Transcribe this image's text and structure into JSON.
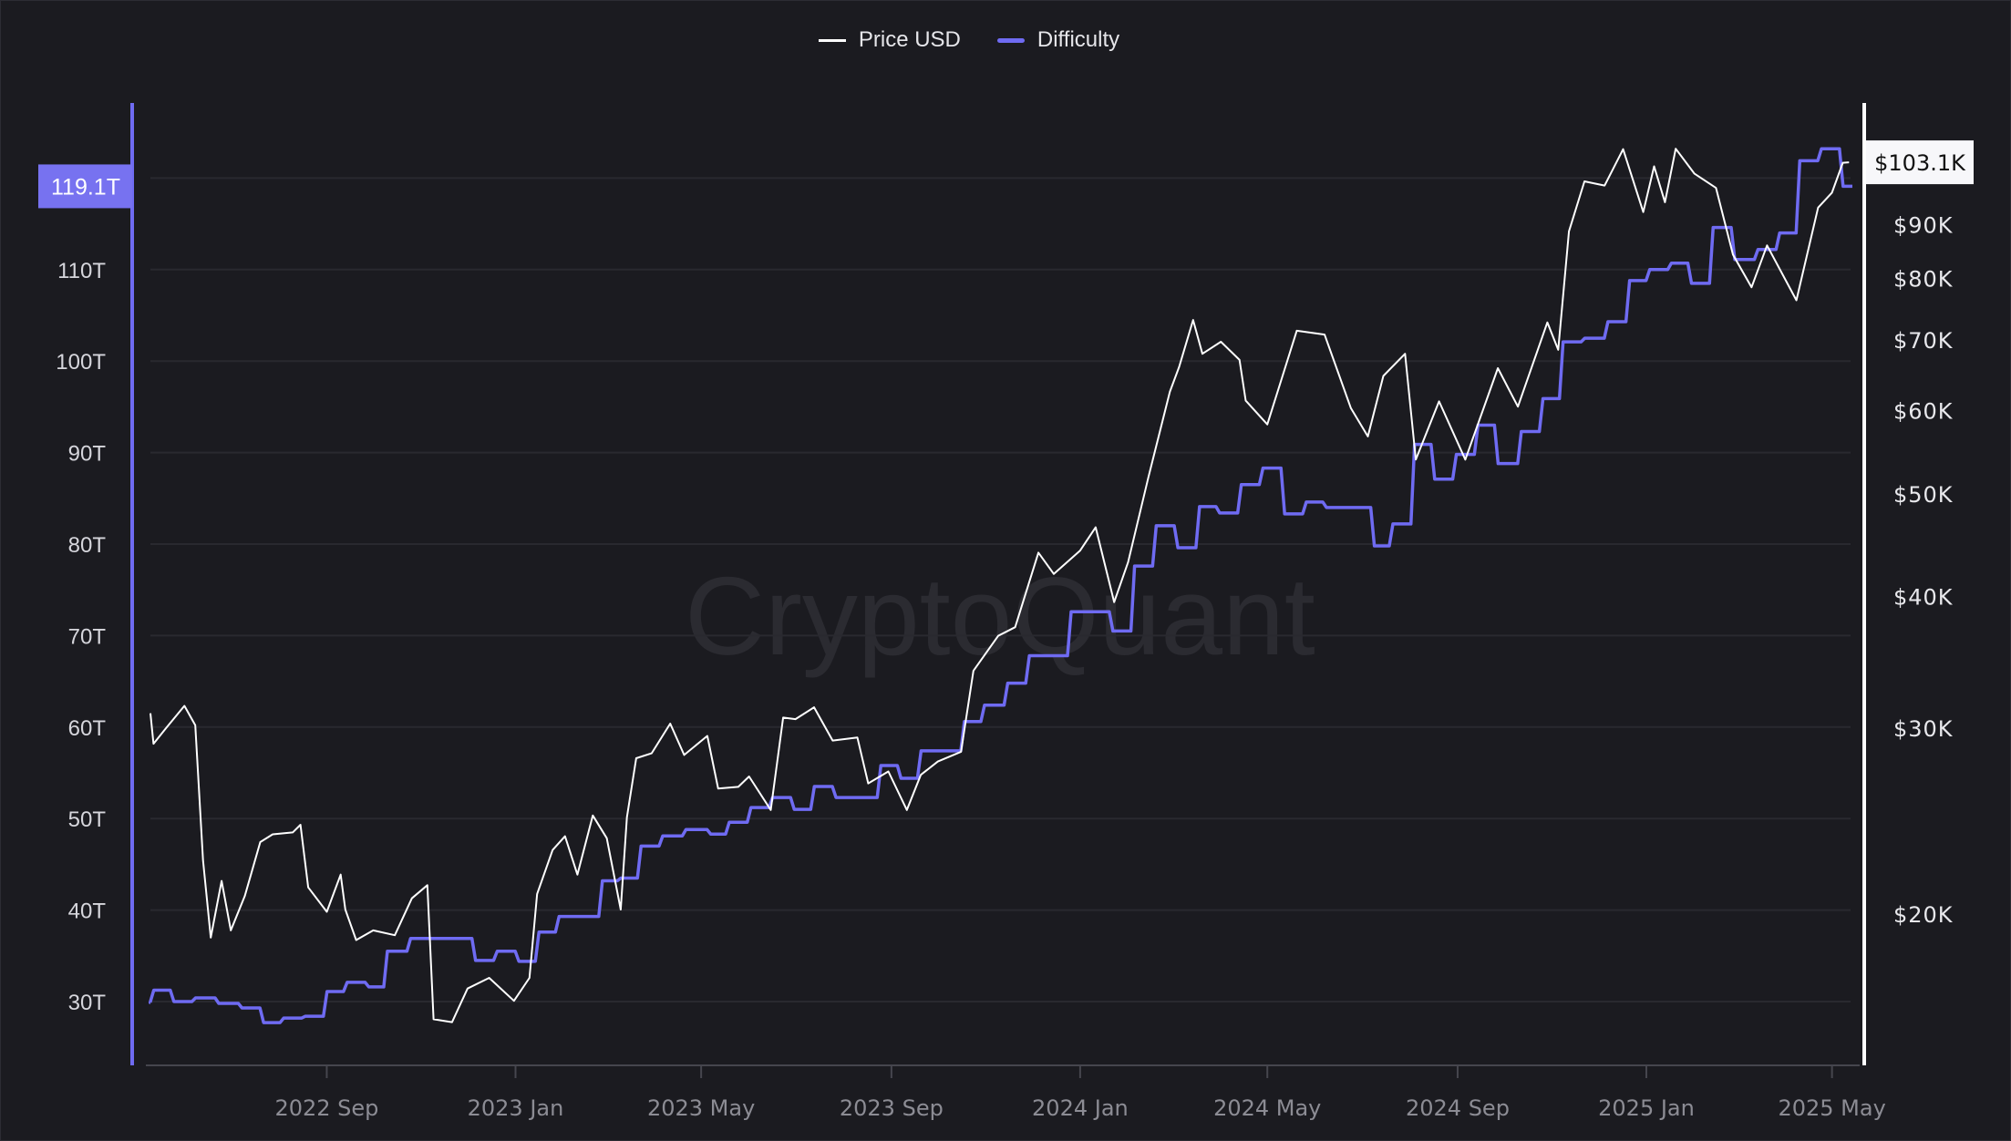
{
  "chart_data": {
    "type": "line",
    "watermark": "CryptoQuant",
    "legend": {
      "placement": "top-center",
      "entries": [
        "Price USD",
        "Difficulty"
      ]
    },
    "colors": {
      "background": "#1b1b20",
      "price": "#ffffff",
      "difficulty": "#6f6bf2",
      "grid": "#29292f",
      "difficulty_label_bg": "#7772f0"
    },
    "grid": true,
    "x_axis": {
      "type": "date",
      "range": [
        "2022-05-10",
        "2025-05-13"
      ],
      "ticks": [
        {
          "date": "2022-09-01",
          "label": "2022 Sep"
        },
        {
          "date": "2023-01-01",
          "label": "2023 Jan"
        },
        {
          "date": "2023-05-01",
          "label": "2023 May"
        },
        {
          "date": "2023-09-01",
          "label": "2023 Sep"
        },
        {
          "date": "2024-01-01",
          "label": "2024 Jan"
        },
        {
          "date": "2024-05-01",
          "label": "2024 May"
        },
        {
          "date": "2024-09-01",
          "label": "2024 Sep"
        },
        {
          "date": "2025-01-01",
          "label": "2025 Jan"
        },
        {
          "date": "2025-05-01",
          "label": "2025 May"
        }
      ]
    },
    "y_left": {
      "unit": "T",
      "scale": "linear",
      "range": [
        25,
        125
      ],
      "ticks": [
        {
          "v": 30,
          "label": "30T"
        },
        {
          "v": 40,
          "label": "40T"
        },
        {
          "v": 50,
          "label": "50T"
        },
        {
          "v": 60,
          "label": "60T"
        },
        {
          "v": 70,
          "label": "70T"
        },
        {
          "v": 80,
          "label": "80T"
        },
        {
          "v": 90,
          "label": "90T"
        },
        {
          "v": 100,
          "label": "100T"
        },
        {
          "v": 110,
          "label": "110T"
        }
      ],
      "current_label": "119.1T",
      "current_value": 119.1
    },
    "y_right": {
      "unit": "USD",
      "scale": "log",
      "ticks": [
        {
          "v": 20000,
          "label": "$20K"
        },
        {
          "v": 30000,
          "label": "$30K"
        },
        {
          "v": 40000,
          "label": "$40K"
        },
        {
          "v": 50000,
          "label": "$50K"
        },
        {
          "v": 60000,
          "label": "$60K"
        },
        {
          "v": 70000,
          "label": "$70K"
        },
        {
          "v": 80000,
          "label": "$80K"
        },
        {
          "v": 90000,
          "label": "$90K"
        }
      ],
      "current_label": "$103.1K",
      "current_value": 103100
    },
    "series": [
      {
        "name": "Price USD",
        "axis": "right",
        "points": [
          [
            "2022-05-10",
            31000
          ],
          [
            "2022-05-12",
            29000
          ],
          [
            "2022-05-20",
            30000
          ],
          [
            "2022-06-01",
            31500
          ],
          [
            "2022-06-08",
            30200
          ],
          [
            "2022-06-13",
            22500
          ],
          [
            "2022-06-18",
            19000
          ],
          [
            "2022-06-25",
            21500
          ],
          [
            "2022-07-01",
            19300
          ],
          [
            "2022-07-10",
            20800
          ],
          [
            "2022-07-20",
            23400
          ],
          [
            "2022-07-28",
            23800
          ],
          [
            "2022-08-10",
            23900
          ],
          [
            "2022-08-15",
            24300
          ],
          [
            "2022-08-20",
            21200
          ],
          [
            "2022-09-01",
            20100
          ],
          [
            "2022-09-10",
            21800
          ],
          [
            "2022-09-13",
            20200
          ],
          [
            "2022-09-20",
            18900
          ],
          [
            "2022-10-01",
            19300
          ],
          [
            "2022-10-15",
            19100
          ],
          [
            "2022-10-26",
            20700
          ],
          [
            "2022-11-05",
            21300
          ],
          [
            "2022-11-09",
            15900
          ],
          [
            "2022-11-21",
            15800
          ],
          [
            "2022-12-01",
            17000
          ],
          [
            "2022-12-15",
            17400
          ],
          [
            "2022-12-31",
            16550
          ],
          [
            "2023-01-10",
            17400
          ],
          [
            "2023-01-15",
            20900
          ],
          [
            "2023-01-25",
            23000
          ],
          [
            "2023-02-02",
            23700
          ],
          [
            "2023-02-10",
            21800
          ],
          [
            "2023-02-20",
            24800
          ],
          [
            "2023-03-01",
            23600
          ],
          [
            "2023-03-10",
            20200
          ],
          [
            "2023-03-14",
            24700
          ],
          [
            "2023-03-20",
            28100
          ],
          [
            "2023-03-30",
            28400
          ],
          [
            "2023-04-11",
            30300
          ],
          [
            "2023-04-20",
            28300
          ],
          [
            "2023-05-05",
            29500
          ],
          [
            "2023-05-12",
            26300
          ],
          [
            "2023-05-25",
            26400
          ],
          [
            "2023-06-01",
            27000
          ],
          [
            "2023-06-15",
            25100
          ],
          [
            "2023-06-23",
            30700
          ],
          [
            "2023-07-01",
            30600
          ],
          [
            "2023-07-13",
            31400
          ],
          [
            "2023-07-25",
            29200
          ],
          [
            "2023-08-10",
            29400
          ],
          [
            "2023-08-17",
            26600
          ],
          [
            "2023-08-30",
            27300
          ],
          [
            "2023-09-11",
            25100
          ],
          [
            "2023-09-20",
            27100
          ],
          [
            "2023-10-01",
            27900
          ],
          [
            "2023-10-16",
            28500
          ],
          [
            "2023-10-24",
            34000
          ],
          [
            "2023-11-09",
            36700
          ],
          [
            "2023-11-20",
            37400
          ],
          [
            "2023-12-05",
            44000
          ],
          [
            "2023-12-15",
            42000
          ],
          [
            "2024-01-01",
            44200
          ],
          [
            "2024-01-11",
            46500
          ],
          [
            "2024-01-23",
            39500
          ],
          [
            "2024-02-01",
            43100
          ],
          [
            "2024-02-14",
            51800
          ],
          [
            "2024-02-28",
            62500
          ],
          [
            "2024-03-05",
            66000
          ],
          [
            "2024-03-14",
            73100
          ],
          [
            "2024-03-20",
            67900
          ],
          [
            "2024-04-01",
            69700
          ],
          [
            "2024-04-13",
            67000
          ],
          [
            "2024-04-17",
            61300
          ],
          [
            "2024-05-01",
            58200
          ],
          [
            "2024-05-20",
            71400
          ],
          [
            "2024-06-07",
            70800
          ],
          [
            "2024-06-24",
            60300
          ],
          [
            "2024-07-05",
            56700
          ],
          [
            "2024-07-15",
            64700
          ],
          [
            "2024-07-29",
            67900
          ],
          [
            "2024-08-05",
            53900
          ],
          [
            "2024-08-20",
            61200
          ],
          [
            "2024-09-06",
            53900
          ],
          [
            "2024-09-27",
            65800
          ],
          [
            "2024-10-10",
            60500
          ],
          [
            "2024-10-29",
            72700
          ],
          [
            "2024-11-05",
            68500
          ],
          [
            "2024-11-12",
            88700
          ],
          [
            "2024-11-22",
            98900
          ],
          [
            "2024-12-05",
            98000
          ],
          [
            "2024-12-17",
            106100
          ],
          [
            "2024-12-30",
            92500
          ],
          [
            "2025-01-06",
            102200
          ],
          [
            "2025-01-13",
            94500
          ],
          [
            "2025-01-20",
            106200
          ],
          [
            "2025-02-01",
            100600
          ],
          [
            "2025-02-15",
            97500
          ],
          [
            "2025-02-26",
            84300
          ],
          [
            "2025-03-10",
            78500
          ],
          [
            "2025-03-20",
            86000
          ],
          [
            "2025-04-08",
            76300
          ],
          [
            "2025-04-22",
            93400
          ],
          [
            "2025-05-01",
            96500
          ],
          [
            "2025-05-08",
            103000
          ],
          [
            "2025-05-12",
            103100
          ]
        ]
      },
      {
        "name": "Difficulty",
        "axis": "left",
        "step": true,
        "points": [
          [
            "2022-05-10",
            29.9
          ],
          [
            "2022-05-11",
            31.25
          ],
          [
            "2022-05-24",
            30.0
          ],
          [
            "2022-06-07",
            30.4
          ],
          [
            "2022-06-22",
            29.8
          ],
          [
            "2022-07-07",
            29.3
          ],
          [
            "2022-07-21",
            27.7
          ],
          [
            "2022-08-03",
            28.2
          ],
          [
            "2022-08-17",
            28.4
          ],
          [
            "2022-08-31",
            31.1
          ],
          [
            "2022-09-13",
            32.1
          ],
          [
            "2022-09-27",
            31.6
          ],
          [
            "2022-10-09",
            35.5
          ],
          [
            "2022-10-24",
            36.9
          ],
          [
            "2022-12-05",
            34.5
          ],
          [
            "2022-12-19",
            35.5
          ],
          [
            "2023-01-02",
            34.4
          ],
          [
            "2023-01-15",
            37.6
          ],
          [
            "2023-01-28",
            39.3
          ],
          [
            "2023-02-25",
            43.2
          ],
          [
            "2023-03-09",
            43.5
          ],
          [
            "2023-03-22",
            47.0
          ],
          [
            "2023-04-05",
            48.1
          ],
          [
            "2023-04-20",
            48.8
          ],
          [
            "2023-05-06",
            48.3
          ],
          [
            "2023-05-18",
            49.6
          ],
          [
            "2023-06-01",
            51.2
          ],
          [
            "2023-06-15",
            52.3
          ],
          [
            "2023-06-29",
            51.0
          ],
          [
            "2023-07-12",
            53.5
          ],
          [
            "2023-07-26",
            52.3
          ],
          [
            "2023-08-24",
            55.8
          ],
          [
            "2023-09-06",
            54.4
          ],
          [
            "2023-09-19",
            57.4
          ],
          [
            "2023-10-17",
            60.6
          ],
          [
            "2023-10-30",
            62.4
          ],
          [
            "2023-11-14",
            64.8
          ],
          [
            "2023-11-28",
            67.8
          ],
          [
            "2023-12-25",
            72.6
          ],
          [
            "2024-01-21",
            70.5
          ],
          [
            "2024-02-04",
            77.6
          ],
          [
            "2024-02-18",
            82.0
          ],
          [
            "2024-03-03",
            79.6
          ],
          [
            "2024-03-17",
            84.1
          ],
          [
            "2024-03-30",
            83.4
          ],
          [
            "2024-04-13",
            86.5
          ],
          [
            "2024-04-27",
            88.3
          ],
          [
            "2024-05-11",
            83.3
          ],
          [
            "2024-05-25",
            84.6
          ],
          [
            "2024-06-07",
            84.0
          ],
          [
            "2024-07-08",
            79.8
          ],
          [
            "2024-07-20",
            82.2
          ],
          [
            "2024-08-03",
            90.9
          ],
          [
            "2024-08-16",
            87.1
          ],
          [
            "2024-08-30",
            89.8
          ],
          [
            "2024-09-13",
            93.0
          ],
          [
            "2024-09-26",
            88.8
          ],
          [
            "2024-10-11",
            92.3
          ],
          [
            "2024-10-25",
            95.9
          ],
          [
            "2024-11-07",
            102.1
          ],
          [
            "2024-11-21",
            102.5
          ],
          [
            "2024-12-06",
            104.3
          ],
          [
            "2024-12-20",
            108.8
          ],
          [
            "2025-01-02",
            110.0
          ],
          [
            "2025-01-16",
            110.7
          ],
          [
            "2025-01-29",
            108.5
          ],
          [
            "2025-02-12",
            114.6
          ],
          [
            "2025-02-26",
            111.1
          ],
          [
            "2025-03-13",
            112.2
          ],
          [
            "2025-03-27",
            114.0
          ],
          [
            "2025-04-09",
            121.9
          ],
          [
            "2025-04-23",
            123.2
          ],
          [
            "2025-05-07",
            119.1
          ],
          [
            "2025-05-13",
            119.1
          ]
        ]
      }
    ]
  }
}
